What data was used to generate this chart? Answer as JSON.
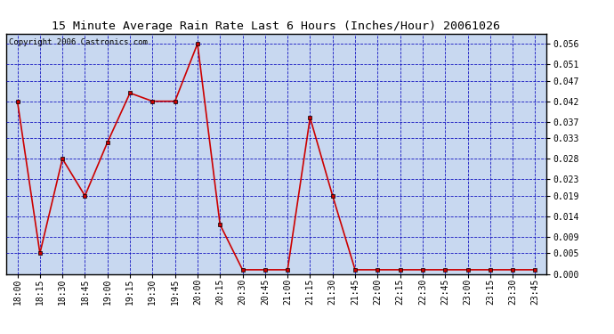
{
  "title": "15 Minute Average Rain Rate Last 6 Hours (Inches/Hour) 20061026",
  "copyright": "Copyright 2006 Castronics.com",
  "x_labels": [
    "18:00",
    "18:15",
    "18:30",
    "18:45",
    "19:00",
    "19:15",
    "19:30",
    "19:45",
    "20:00",
    "20:15",
    "20:30",
    "20:45",
    "21:00",
    "21:15",
    "21:30",
    "21:45",
    "22:00",
    "22:15",
    "22:30",
    "22:45",
    "23:00",
    "23:15",
    "23:30",
    "23:45"
  ],
  "y_values": [
    0.042,
    0.005,
    0.028,
    0.019,
    0.032,
    0.044,
    0.042,
    0.042,
    0.056,
    0.012,
    0.001,
    0.001,
    0.001,
    0.038,
    0.019,
    0.001,
    0.001,
    0.001,
    0.001,
    0.001,
    0.001,
    0.001,
    0.001,
    0.001
  ],
  "y_ticks": [
    0.0,
    0.005,
    0.009,
    0.014,
    0.019,
    0.023,
    0.028,
    0.033,
    0.037,
    0.042,
    0.047,
    0.051,
    0.056
  ],
  "y_min": 0.0,
  "y_max": 0.0585,
  "line_color": "#cc0000",
  "marker_color": "#000000",
  "plot_bg_color": "#c8d8f0",
  "grid_color": "#0000bb",
  "title_fontsize": 9.5,
  "tick_fontsize": 7,
  "copyright_fontsize": 6.5,
  "fig_width": 6.9,
  "fig_height": 3.75,
  "dpi": 100
}
